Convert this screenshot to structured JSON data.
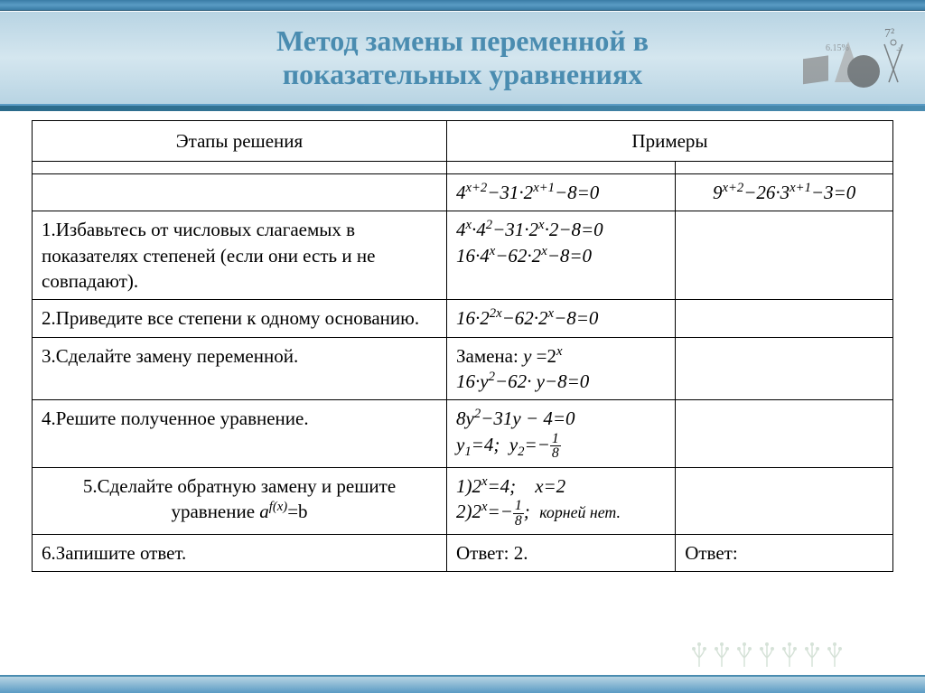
{
  "title_line1": "Метод замены переменной в",
  "title_line2": "показательных уравнениях",
  "headers": {
    "steps": "Этапы решения",
    "examples": "Примеры"
  },
  "equations": {
    "ex1_initial": "4<sup>x+2</sup>−31·2<sup>x+1</sup>−8=0",
    "ex2_initial": "9<sup>x+2</sup>−26·3<sup>x+1</sup>−3=0"
  },
  "rows": [
    {
      "step": "1.Избавьтесь от числовых слагаемых в показателях степеней (если они есть и не совпадают).",
      "ex1_l1": "4<sup>x</sup>·4<sup>2</sup>−31·2<sup>x</sup>·2−8=0",
      "ex1_l2": "16·4<sup>x</sup>−62·2<sup>x</sup>−8=0",
      "ex2": ""
    },
    {
      "step": "2.Приведите все степени к одному основанию.",
      "ex1_l1": "16·2<sup>2x</sup>−62·2<sup>x</sup>−8=0",
      "ex2": ""
    },
    {
      "step": "3.Сделайте замену переменной.",
      "ex1_l1": "Замена: <i>y</i> =2<sup>x</sup>",
      "ex1_l2": "16·<i>y</i><sup>2</sup>−62· <i>y</i>−8=0",
      "ex2": ""
    },
    {
      "step": "4.Решите полученное уравнение.",
      "ex1_l1": "8<i>y</i><sup>2</sup>−31<i>y</i> − 4=0",
      "ex1_l2": "<i>y</i><sub>1</sub>=4;&nbsp;&nbsp;<i>y</i><sub>2</sub>=−",
      "ex2": ""
    },
    {
      "step_html": "5.Сделайте обратную замену и решите уравнение <span class=\"math\">a<sup>f(x)</sup></span>=b",
      "ex1_l1": "1)2<sup>x</sup>=4;&nbsp;&nbsp;&nbsp;&nbsp;<i>x</i>=2",
      "ex1_l2_prefix": "2)2<sup>x</sup>=−",
      "ex1_l2_suffix": ";&nbsp;&nbsp;<span class=\"small-note\">корней нет.</span>",
      "ex2": ""
    },
    {
      "step": "6.Запишите ответ.",
      "ex1_l1": "Ответ: 2.",
      "ex2": "Ответ:"
    }
  ],
  "colors": {
    "banner_text": "#4a8cb0",
    "border": "#000000",
    "accent": "#5a9bc4"
  }
}
